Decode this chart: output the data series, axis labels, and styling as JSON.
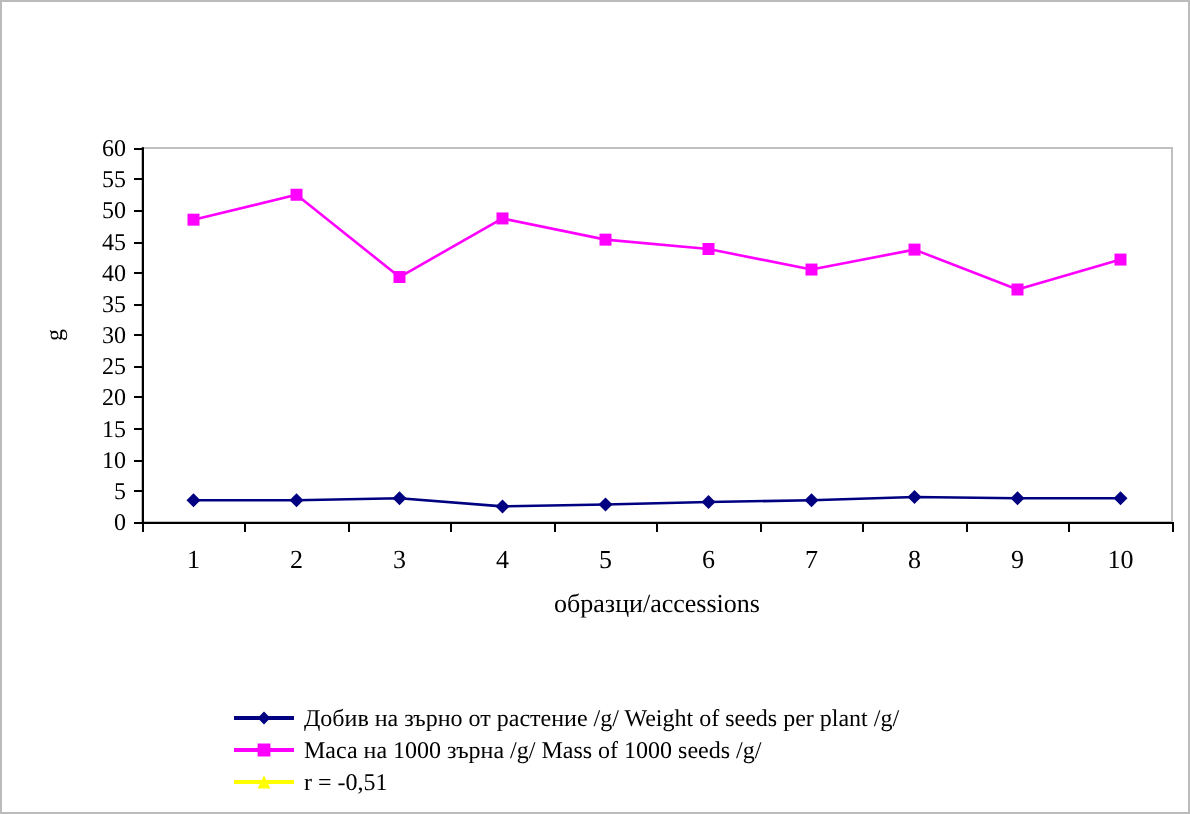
{
  "chart_data": {
    "type": "line",
    "xlabel": "образци/accessions",
    "ylabel": "g",
    "categories": [
      "1",
      "2",
      "3",
      "4",
      "5",
      "6",
      "7",
      "8",
      "9",
      "10"
    ],
    "series": [
      {
        "name": "Добив на зърно от растение /g/ Weight of seeds per plant /g/",
        "color": "#000080",
        "marker": "diamond",
        "values": [
          3.5,
          3.5,
          3.8,
          2.5,
          2.8,
          3.2,
          3.5,
          4.0,
          3.8,
          3.8
        ]
      },
      {
        "name": "Маса на 1000 зърна /g/ Mass of 1000 seeds /g/",
        "color": "#ff00ff",
        "marker": "square",
        "values": [
          48.5,
          52.5,
          39.3,
          48.7,
          45.3,
          43.8,
          40.5,
          43.7,
          37.3,
          42.1
        ]
      },
      {
        "name": "r = -0,51",
        "color": "#ffff00",
        "marker": "triangle",
        "values": [
          null,
          null,
          null,
          null,
          null,
          null,
          null,
          null,
          null,
          null
        ]
      }
    ],
    "ylim": [
      0,
      60
    ],
    "yticks": [
      0,
      5,
      10,
      15,
      20,
      25,
      30,
      35,
      40,
      45,
      50,
      55,
      60
    ],
    "grid": false,
    "legend": "bottom left"
  }
}
